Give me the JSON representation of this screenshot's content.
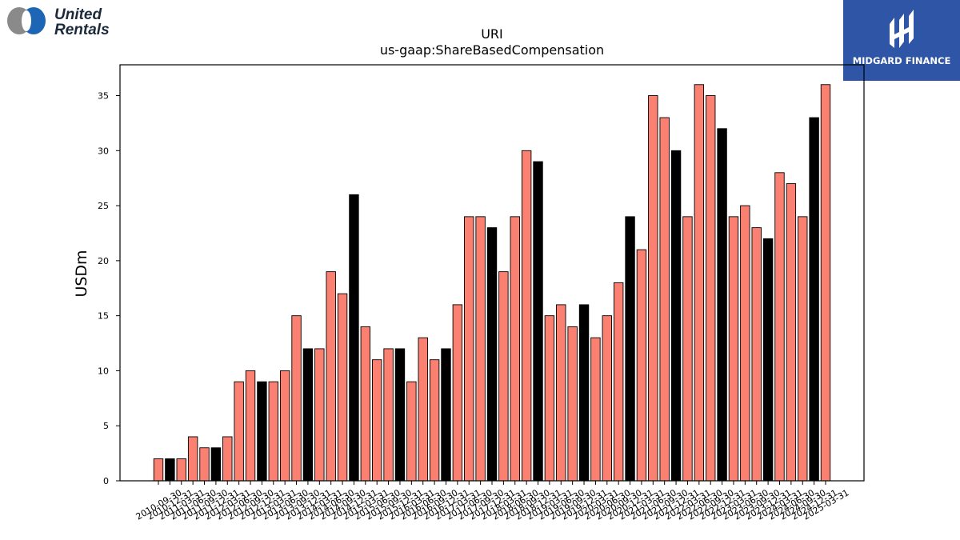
{
  "branding": {
    "company_logo_text": [
      "United",
      "Rentals"
    ],
    "publisher_logo_text": "MIDGARD FINANCE",
    "publisher_bg_color": "#2f56a6"
  },
  "chart_data": {
    "type": "bar",
    "title": "URI",
    "subtitle": "us-gaap:ShareBasedCompensation",
    "xlabel": "",
    "ylabel": "USDm",
    "ylim": [
      0,
      37.8
    ],
    "yticks": [
      0,
      5,
      10,
      15,
      20,
      25,
      30,
      35
    ],
    "grid": false,
    "colors": {
      "quarterly": "#fa8072",
      "annual": "#000000"
    },
    "categories": [
      "2010-09-30",
      "2010-12-31",
      "2011-03-31",
      "2011-06-30",
      "2011-09-30",
      "2011-12-31",
      "2012-03-31",
      "2012-06-30",
      "2012-09-30",
      "2012-12-31",
      "2013-03-31",
      "2013-06-30",
      "2013-09-30",
      "2013-12-31",
      "2014-03-31",
      "2014-06-30",
      "2014-09-30",
      "2014-12-31",
      "2015-03-31",
      "2015-06-30",
      "2015-09-30",
      "2015-12-31",
      "2016-03-31",
      "2016-06-30",
      "2016-09-30",
      "2016-12-31",
      "2017-03-31",
      "2017-06-30",
      "2017-09-30",
      "2017-12-31",
      "2018-03-31",
      "2018-06-30",
      "2018-09-30",
      "2018-12-31",
      "2019-03-31",
      "2019-06-30",
      "2019-09-30",
      "2019-12-31",
      "2020-03-31",
      "2020-06-30",
      "2020-09-30",
      "2020-12-31",
      "2021-03-31",
      "2021-06-30",
      "2021-09-30",
      "2021-12-31",
      "2022-03-31",
      "2022-06-30",
      "2022-09-30",
      "2022-12-31",
      "2023-03-31",
      "2023-06-30",
      "2023-09-30",
      "2023-12-31",
      "2024-03-31",
      "2024-06-30",
      "2024-09-30",
      "2024-12-31",
      "2025-03-31"
    ],
    "values": [
      2,
      2,
      2,
      4,
      3,
      3,
      4,
      9,
      10,
      9,
      9,
      10,
      15,
      12,
      12,
      19,
      17,
      26,
      14,
      11,
      12,
      12,
      9,
      13,
      11,
      12,
      16,
      24,
      24,
      23,
      19,
      24,
      30,
      29,
      15,
      16,
      14,
      16,
      13,
      15,
      18,
      24,
      21,
      35,
      33,
      30,
      24,
      36,
      35,
      32,
      24,
      25,
      23,
      22,
      28,
      27,
      24,
      33,
      36
    ],
    "annual": [
      false,
      true,
      false,
      false,
      false,
      true,
      false,
      false,
      false,
      true,
      false,
      false,
      false,
      true,
      false,
      false,
      false,
      true,
      false,
      false,
      false,
      true,
      false,
      false,
      false,
      true,
      false,
      false,
      false,
      true,
      false,
      false,
      false,
      true,
      false,
      false,
      false,
      true,
      false,
      false,
      false,
      true,
      false,
      false,
      false,
      true,
      false,
      false,
      false,
      true,
      false,
      false,
      false,
      true,
      false,
      false,
      false,
      true,
      false
    ]
  }
}
